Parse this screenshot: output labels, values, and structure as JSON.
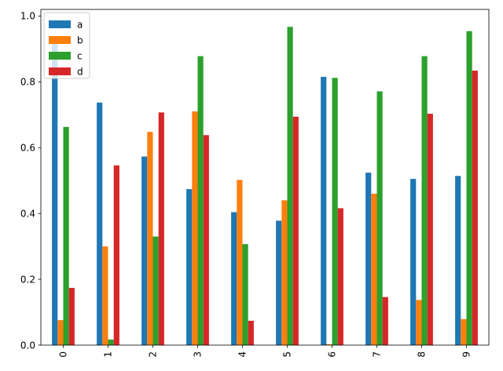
{
  "chart_data": {
    "type": "bar",
    "categories": [
      "0",
      "1",
      "2",
      "3",
      "4",
      "5",
      "6",
      "7",
      "8",
      "9"
    ],
    "series": [
      {
        "name": "a",
        "color": "#1f77b4",
        "values": [
          0.92,
          0.737,
          0.573,
          0.474,
          0.404,
          0.378,
          0.815,
          0.524,
          0.505,
          0.514
        ]
      },
      {
        "name": "b",
        "color": "#ff7f0e",
        "values": [
          0.076,
          0.3,
          0.648,
          0.71,
          0.502,
          0.44,
          0.003,
          0.46,
          0.137,
          0.079
        ]
      },
      {
        "name": "c",
        "color": "#2ca02c",
        "values": [
          0.663,
          0.017,
          0.33,
          0.878,
          0.307,
          0.967,
          0.812,
          0.771,
          0.878,
          0.954
        ]
      },
      {
        "name": "d",
        "color": "#d62728",
        "values": [
          0.174,
          0.546,
          0.707,
          0.638,
          0.074,
          0.694,
          0.416,
          0.146,
          0.703,
          0.834
        ]
      }
    ],
    "title": "",
    "xlabel": "",
    "ylabel": "",
    "ylim": [
      0,
      1.0
    ],
    "yticks": [
      "0.0",
      "0.2",
      "0.4",
      "0.6",
      "0.8",
      "1.0"
    ],
    "legend": "top-left",
    "grid": false
  }
}
